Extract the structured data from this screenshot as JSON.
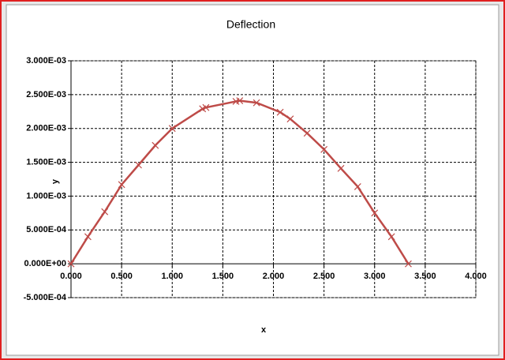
{
  "chart_data": {
    "type": "line",
    "title": "Deflection",
    "x_label": "x",
    "y_label": "y",
    "x": [
      0,
      0.167,
      0.333,
      0.5,
      0.667,
      0.833,
      1.0,
      1.3,
      1.333,
      1.63,
      1.667,
      1.833,
      2.067,
      2.167,
      2.333,
      2.5,
      2.667,
      2.833,
      3.0,
      3.167,
      3.333
    ],
    "series": [
      {
        "color": "#be4b48",
        "values": [
          0,
          0.0004,
          0.00077,
          0.00117,
          0.00146,
          0.00175,
          0.002,
          0.00229,
          0.00231,
          0.0024,
          0.00241,
          0.00238,
          0.00224,
          0.00214,
          0.00193,
          0.00169,
          0.00141,
          0.00114,
          0.00075,
          0.0004,
          0
        ]
      }
    ],
    "xlim": [
      0,
      4
    ],
    "xticks": [
      {
        "value": 0,
        "label": "0.000"
      },
      {
        "value": 0.5,
        "label": "0.500"
      },
      {
        "value": 1,
        "label": "1.000"
      },
      {
        "value": 1.5,
        "label": "1.500"
      },
      {
        "value": 2,
        "label": "2.000"
      },
      {
        "value": 2.5,
        "label": "2.500"
      },
      {
        "value": 3,
        "label": "3.000"
      },
      {
        "value": 3.5,
        "label": "3.500"
      },
      {
        "value": 4,
        "label": "4.000"
      }
    ],
    "ylim": [
      -0.0005,
      0.003
    ],
    "yticks": [
      {
        "value": -0.0005,
        "label": "-5.000E-04"
      },
      {
        "value": 0,
        "label": "0.000E+00"
      },
      {
        "value": 0.0005,
        "label": "5.000E-04"
      },
      {
        "value": 0.001,
        "label": "1.000E-03"
      },
      {
        "value": 0.0015,
        "label": "1.500E-03"
      },
      {
        "value": 0.002,
        "label": "2.000E-03"
      },
      {
        "value": 0.0025,
        "label": "2.500E-03"
      },
      {
        "value": 0.003,
        "label": "3.000E-03"
      }
    ],
    "grid": true
  }
}
